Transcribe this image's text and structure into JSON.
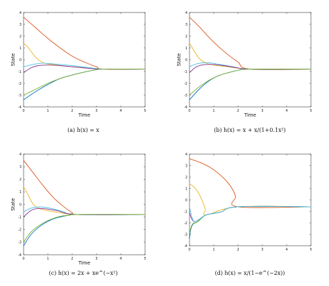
{
  "chart_data": [
    {
      "type": "line",
      "caption": "(a) h(x) = x",
      "xlabel": "Time",
      "ylabel": "State",
      "xlim": [
        0,
        5
      ],
      "ylim": [
        -4,
        4
      ],
      "xticks": [
        "0",
        "1",
        "2",
        "3",
        "4",
        "5"
      ],
      "yticks": [
        "4",
        "3",
        "2",
        "1",
        "0",
        "-1",
        "-2",
        "-3",
        "-4"
      ],
      "converge_time": 3.3,
      "final_value": -0.8,
      "series": [
        {
          "color": "#d95319",
          "x": [
            0,
            0.5,
            1,
            1.5,
            2,
            2.5,
            3,
            3.3,
            5
          ],
          "y": [
            3.6,
            2.7,
            1.8,
            1.0,
            0.3,
            -0.2,
            -0.6,
            -0.8,
            -0.8
          ]
        },
        {
          "color": "#edb120",
          "x": [
            0,
            0.2,
            0.5,
            0.8,
            1.2,
            2,
            3,
            3.3,
            5
          ],
          "y": [
            1.4,
            1.0,
            0.2,
            -0.25,
            -0.4,
            -0.6,
            -0.75,
            -0.8,
            -0.8
          ]
        },
        {
          "color": "#4dbeee",
          "x": [
            0,
            0.4,
            0.8,
            1.2,
            2,
            3,
            3.3,
            5
          ],
          "y": [
            -0.6,
            -0.4,
            -0.3,
            -0.35,
            -0.5,
            -0.75,
            -0.8,
            -0.8
          ]
        },
        {
          "color": "#7e2f8e",
          "x": [
            0,
            0.3,
            0.6,
            1,
            1.5,
            2.5,
            3.3,
            5
          ],
          "y": [
            -1.1,
            -0.7,
            -0.5,
            -0.45,
            -0.5,
            -0.7,
            -0.8,
            -0.8
          ]
        },
        {
          "color": "#0072bd",
          "x": [
            0,
            0.5,
            1,
            1.5,
            2,
            2.5,
            3,
            3.3,
            5
          ],
          "y": [
            -3.4,
            -2.7,
            -2.1,
            -1.6,
            -1.3,
            -1.05,
            -0.85,
            -0.8,
            -0.8
          ]
        },
        {
          "color": "#77ac30",
          "x": [
            0,
            0.5,
            1,
            1.5,
            2,
            2.5,
            3,
            3.3,
            5
          ],
          "y": [
            -3.0,
            -2.5,
            -2.0,
            -1.6,
            -1.3,
            -1.05,
            -0.85,
            -0.8,
            -0.8
          ]
        }
      ]
    },
    {
      "type": "line",
      "caption": "(b) h(x) = x + x/(1+0.1x²)",
      "xlabel": "Time",
      "ylabel": "State",
      "xlim": [
        0,
        5
      ],
      "ylim": [
        -4,
        4
      ],
      "xticks": [
        "0",
        "1",
        "2",
        "3",
        "4",
        "5"
      ],
      "yticks": [
        "4",
        "3",
        "2",
        "1",
        "0",
        "-1",
        "-2",
        "-3",
        "-4"
      ],
      "converge_time": 2.5,
      "final_value": -0.8,
      "series": [
        {
          "color": "#d95319",
          "x": [
            0,
            0.4,
            0.8,
            1.2,
            1.6,
            2,
            2.5,
            5
          ],
          "y": [
            3.6,
            2.8,
            1.9,
            1.1,
            0.4,
            -0.2,
            -0.8,
            -0.8
          ]
        },
        {
          "color": "#edb120",
          "x": [
            0,
            0.15,
            0.4,
            0.7,
            1,
            1.6,
            2.5,
            5
          ],
          "y": [
            1.4,
            0.9,
            0.1,
            -0.3,
            -0.45,
            -0.6,
            -0.8,
            -0.8
          ]
        },
        {
          "color": "#4dbeee",
          "x": [
            0,
            0.3,
            0.7,
            1.1,
            1.8,
            2.5,
            5
          ],
          "y": [
            -0.6,
            -0.35,
            -0.25,
            -0.35,
            -0.6,
            -0.8,
            -0.8
          ]
        },
        {
          "color": "#7e2f8e",
          "x": [
            0,
            0.25,
            0.5,
            0.9,
            1.4,
            2,
            2.5,
            5
          ],
          "y": [
            -1.1,
            -0.65,
            -0.45,
            -0.4,
            -0.5,
            -0.7,
            -0.8,
            -0.8
          ]
        },
        {
          "color": "#0072bd",
          "x": [
            0,
            0.4,
            0.8,
            1.2,
            1.6,
            2,
            2.5,
            5
          ],
          "y": [
            -3.4,
            -2.5,
            -1.8,
            -1.35,
            -1.1,
            -0.9,
            -0.8,
            -0.8
          ]
        },
        {
          "color": "#77ac30",
          "x": [
            0,
            0.4,
            0.8,
            1.2,
            1.6,
            2,
            2.5,
            5
          ],
          "y": [
            -3.0,
            -2.3,
            -1.75,
            -1.35,
            -1.1,
            -0.9,
            -0.8,
            -0.8
          ]
        }
      ]
    },
    {
      "type": "line",
      "caption": "(c) h(x) = 2x + xe^(−x²)",
      "xlabel": "Time",
      "ylabel": "State",
      "xlim": [
        0,
        5
      ],
      "ylim": [
        -4,
        4
      ],
      "xticks": [
        "0",
        "1",
        "2",
        "3",
        "4",
        "5"
      ],
      "yticks": [
        "4",
        "3",
        "2",
        "1",
        "0",
        "-1",
        "-2",
        "-3",
        "-4"
      ],
      "converge_time": 2.2,
      "final_value": -0.8,
      "series": [
        {
          "color": "#d95319",
          "x": [
            0,
            0.4,
            0.8,
            1.2,
            1.6,
            2,
            2.2,
            5
          ],
          "y": [
            3.5,
            2.5,
            1.5,
            0.6,
            -0.1,
            -0.65,
            -0.8,
            -0.8
          ]
        },
        {
          "color": "#edb120",
          "x": [
            0,
            0.15,
            0.4,
            0.7,
            1,
            1.5,
            2.2,
            5
          ],
          "y": [
            1.4,
            0.9,
            0.0,
            -0.35,
            -0.5,
            -0.65,
            -0.8,
            -0.8
          ]
        },
        {
          "color": "#4dbeee",
          "x": [
            0,
            0.3,
            0.7,
            1.1,
            1.6,
            2.2,
            5
          ],
          "y": [
            -0.6,
            -0.3,
            -0.2,
            -0.3,
            -0.55,
            -0.8,
            -0.8
          ]
        },
        {
          "color": "#7e2f8e",
          "x": [
            0,
            0.25,
            0.5,
            0.9,
            1.4,
            2.2,
            5
          ],
          "y": [
            -1.0,
            -0.55,
            -0.35,
            -0.35,
            -0.5,
            -0.8,
            -0.8
          ]
        },
        {
          "color": "#0072bd",
          "x": [
            0,
            0.3,
            0.7,
            1.1,
            1.5,
            1.9,
            2.2,
            5
          ],
          "y": [
            -3.3,
            -2.4,
            -1.7,
            -1.25,
            -1.0,
            -0.85,
            -0.8,
            -0.8
          ]
        },
        {
          "color": "#77ac30",
          "x": [
            0,
            0.3,
            0.7,
            1.1,
            1.5,
            1.9,
            2.2,
            5
          ],
          "y": [
            -3.0,
            -2.2,
            -1.6,
            -1.2,
            -0.95,
            -0.85,
            -0.8,
            -0.8
          ]
        }
      ]
    },
    {
      "type": "line",
      "caption": "(d) h(x) = x/(1−e^(−2x))",
      "xlabel": "",
      "ylabel": "",
      "xlim": [
        0,
        5
      ],
      "ylim": [
        -4,
        4
      ],
      "xticks": [
        "0",
        "1",
        "2",
        "3",
        "4",
        "5"
      ],
      "yticks": [
        "4",
        "3",
        "2",
        "1",
        "0",
        "-1",
        "-2",
        "-3",
        "-4"
      ],
      "converge_time": 2.0,
      "final_value": -0.6,
      "series": [
        {
          "color": "#d95319",
          "x": [
            0,
            0.4,
            0.8,
            1.2,
            1.5,
            1.75,
            1.9,
            2.0,
            5
          ],
          "y": [
            3.6,
            3.3,
            2.9,
            2.3,
            1.7,
            1.0,
            0.3,
            -0.6,
            -0.6
          ]
        },
        {
          "color": "#edb120",
          "x": [
            0,
            0.2,
            0.4,
            0.55,
            0.65,
            0.7,
            2.0,
            5
          ],
          "y": [
            1.4,
            1.1,
            0.5,
            -0.2,
            -0.8,
            -1.3,
            -0.6,
            -0.6
          ]
        },
        {
          "color": "#7e2f8e",
          "x": [
            0,
            0.08,
            0.2,
            0.4,
            0.7,
            1.3,
            2.0,
            5
          ],
          "y": [
            -1.1,
            -1.6,
            -1.9,
            -1.7,
            -1.3,
            -1.05,
            -0.6,
            -0.6
          ]
        },
        {
          "color": "#0072bd",
          "x": [
            0,
            0.05,
            0.15,
            0.3,
            0.5,
            0.7,
            1.3,
            2.0,
            5
          ],
          "y": [
            -3.4,
            -2.6,
            -2.1,
            -1.95,
            -1.6,
            -1.3,
            -1.05,
            -0.6,
            -0.6
          ]
        },
        {
          "color": "#77ac30",
          "x": [
            0,
            0.06,
            0.15,
            0.3,
            0.5,
            0.7,
            1.3,
            2.0,
            5
          ],
          "y": [
            -3.0,
            -2.4,
            -2.05,
            -1.95,
            -1.6,
            -1.3,
            -1.05,
            -0.6,
            -0.6
          ]
        },
        {
          "color": "#4dbeee",
          "x": [
            0,
            0.1,
            0.2,
            0.4,
            0.7,
            1.3,
            2.0,
            5
          ],
          "y": [
            -0.6,
            -1.5,
            -1.9,
            -1.7,
            -1.3,
            -1.05,
            -0.6,
            -0.6
          ]
        }
      ]
    }
  ]
}
